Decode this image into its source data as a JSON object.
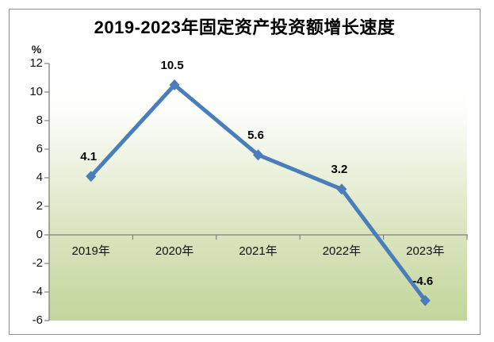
{
  "chart_data": {
    "type": "line",
    "title": "2019-2023年固定资产投资额增长速度",
    "xlabel": "",
    "ylabel": "%",
    "categories": [
      "2019年",
      "2020年",
      "2021年",
      "2022年",
      "2023年"
    ],
    "values": [
      4.1,
      10.5,
      5.6,
      3.2,
      -4.6
    ],
    "data_labels": [
      "4.1",
      "10.5",
      "5.6",
      "3.2",
      "-4.6"
    ],
    "ylim": [
      -6,
      12
    ],
    "yticks": [
      12,
      10,
      8,
      6,
      4,
      2,
      0,
      -2,
      -4,
      -6
    ],
    "grid": false,
    "legend_position": "none",
    "colors": {
      "line": "#4a7ebb",
      "marker": "#4a7ebb",
      "axis": "#7f7f7f",
      "frame_border": "#8e8e8e",
      "plot_gradient_top": "#ffffff",
      "plot_gradient_bottom": "#c3d69b",
      "text": "#000000"
    }
  }
}
